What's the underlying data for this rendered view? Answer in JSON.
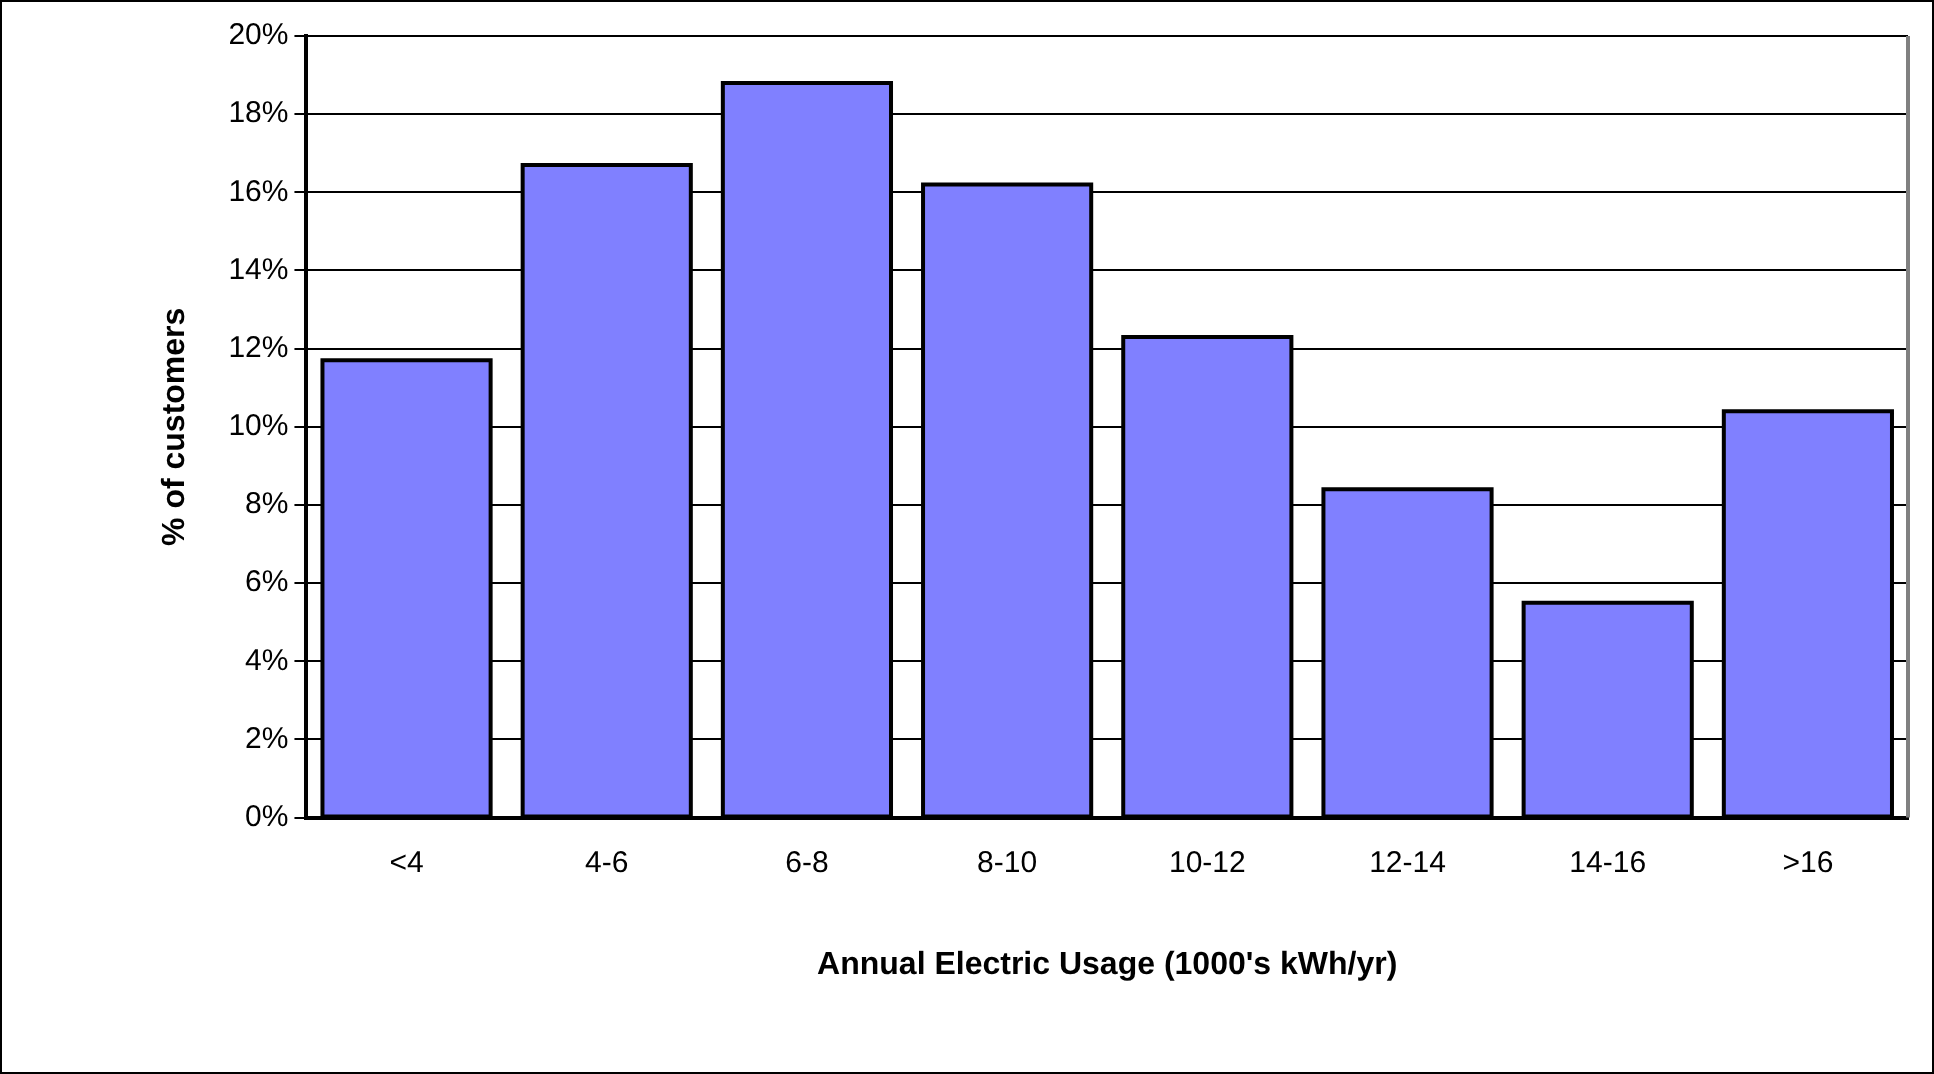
{
  "chart_data": {
    "type": "bar",
    "xlabel": "Annual Electric Usage (1000's kWh/yr)",
    "ylabel": "% of customers",
    "categories": [
      "<4",
      "4-6",
      "6-8",
      "8-10",
      "10-12",
      "12-14",
      "14-16",
      ">16"
    ],
    "values": [
      11.7,
      16.7,
      18.8,
      16.2,
      12.3,
      8.4,
      5.5,
      10.4
    ],
    "color": "#8080ff",
    "ylim": [
      0,
      20
    ],
    "yticks": [
      {
        "value": 0,
        "label": "0%"
      },
      {
        "value": 2,
        "label": "2%"
      },
      {
        "value": 4,
        "label": "4%"
      },
      {
        "value": 6,
        "label": "6%"
      },
      {
        "value": 8,
        "label": "8%"
      },
      {
        "value": 10,
        "label": "10%"
      },
      {
        "value": 12,
        "label": "12%"
      },
      {
        "value": 14,
        "label": "14%"
      },
      {
        "value": 16,
        "label": "16%"
      },
      {
        "value": 18,
        "label": "18%"
      },
      {
        "value": 20,
        "label": "20%"
      }
    ],
    "grid": "y",
    "legend": false
  }
}
